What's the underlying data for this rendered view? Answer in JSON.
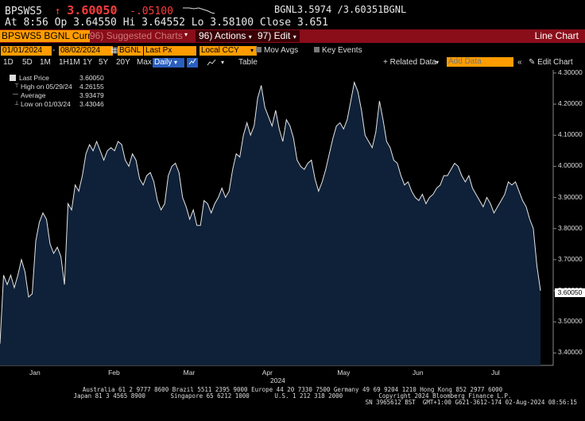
{
  "quote": {
    "ticker": "BPSWS5",
    "arrow": "↑",
    "last": "3.60050",
    "change": "-.05100",
    "bid_label": "BGNL",
    "bid": "3.5974",
    "ask": "/3.60351",
    "ask_label": "BGNL",
    "time_line": "At 8:56 Op 3.64550 Hi 3.64552 Lo 3.58100 Close 3.651"
  },
  "menubar": {
    "security": "BPSWS5 BGNL Curncy",
    "suggested": "96) Suggested Charts",
    "actions": "96) Actions",
    "edit": "97) Edit",
    "chart_type": "Line Chart"
  },
  "toolbar1": {
    "start_date": "01/01/2024",
    "end_date": "08/02/2024",
    "source": "BGNL",
    "field": "Last Px",
    "currency": "Local CCY",
    "mov_avgs": "Mov Avgs",
    "key_events": "Key Events"
  },
  "toolbar2": {
    "periods": [
      "1D",
      "5D",
      "1M",
      "1H1M",
      "1Y",
      "5Y",
      "20Y",
      "Max"
    ],
    "frequency": "Daily",
    "table": "Table",
    "related_data": "+ Related Data",
    "add_data_placeholder": "Add Data",
    "edit_chart": "Edit Chart"
  },
  "legend": {
    "last_label": "Last Price",
    "last_value": "3.60050",
    "high_label": "High on 05/29/24",
    "high_value": "4.26155",
    "avg_label": "Average",
    "avg_value": "3.93479",
    "low_label": "Low on 01/03/24",
    "low_value": "3.43046"
  },
  "chart_data": {
    "type": "area",
    "y_ticks": [
      "4.30000",
      "4.20000",
      "4.10000",
      "4.00000",
      "3.90000",
      "3.80000",
      "3.70000",
      "3.60000",
      "3.50000",
      "3.40000"
    ],
    "ylim": [
      3.36,
      4.31
    ],
    "x_ticks": [
      "Jan",
      "Feb",
      "Mar",
      "Apr",
      "May",
      "Jun",
      "Jul"
    ],
    "year_label": "2024",
    "last_value_label": "3.60050",
    "values": [
      3.43,
      3.65,
      3.62,
      3.65,
      3.61,
      3.65,
      3.7,
      3.66,
      3.58,
      3.59,
      3.76,
      3.82,
      3.85,
      3.83,
      3.75,
      3.72,
      3.74,
      3.71,
      3.62,
      3.88,
      3.86,
      3.94,
      3.92,
      3.97,
      4.04,
      4.07,
      4.05,
      4.08,
      4.05,
      4.02,
      4.05,
      4.06,
      4.05,
      4.08,
      4.07,
      4.02,
      4.0,
      4.04,
      4.02,
      3.96,
      3.94,
      3.97,
      3.98,
      3.95,
      3.89,
      3.86,
      3.88,
      3.97,
      4.0,
      4.01,
      3.98,
      3.9,
      3.87,
      3.83,
      3.86,
      3.81,
      3.81,
      3.89,
      3.88,
      3.85,
      3.88,
      3.9,
      3.93,
      3.9,
      3.92,
      3.99,
      4.04,
      4.03,
      4.1,
      4.14,
      4.1,
      4.13,
      4.22,
      4.26,
      4.19,
      4.16,
      4.13,
      4.18,
      4.12,
      4.08,
      4.15,
      4.13,
      4.09,
      4.02,
      4.0,
      3.99,
      4.01,
      4.02,
      3.96,
      3.92,
      3.95,
      3.99,
      4.04,
      4.09,
      4.13,
      4.14,
      4.12,
      4.15,
      4.21,
      4.27,
      4.24,
      4.18,
      4.1,
      4.08,
      4.06,
      4.11,
      4.21,
      4.15,
      4.08,
      4.06,
      4.02,
      4.01,
      3.97,
      3.94,
      3.95,
      3.92,
      3.9,
      3.89,
      3.91,
      3.88,
      3.9,
      3.91,
      3.93,
      3.94,
      3.97,
      3.97,
      3.99,
      4.01,
      4.0,
      3.97,
      3.95,
      3.97,
      3.93,
      3.91,
      3.89,
      3.87,
      3.9,
      3.88,
      3.85,
      3.87,
      3.89,
      3.91,
      3.95,
      3.94,
      3.95,
      3.92,
      3.89,
      3.87,
      3.83,
      3.8,
      3.68,
      3.6
    ]
  },
  "footer": {
    "line1": "Australia 61 2 9777 8600 Brazil 5511 2395 9000 Europe 44 20 7330 7500 Germany 49 69 9204 1210 Hong Kong 852 2977 6000",
    "line2": "Japan 81 3 4565 8900       Singapore 65 6212 1000       U.S. 1 212 318 2000          Copyright 2024 Bloomberg Finance L.P.",
    "line3": "SN 3965612 BST  GMT+1:00 G621-3612-174 02-Aug-2024 08:56:15"
  }
}
